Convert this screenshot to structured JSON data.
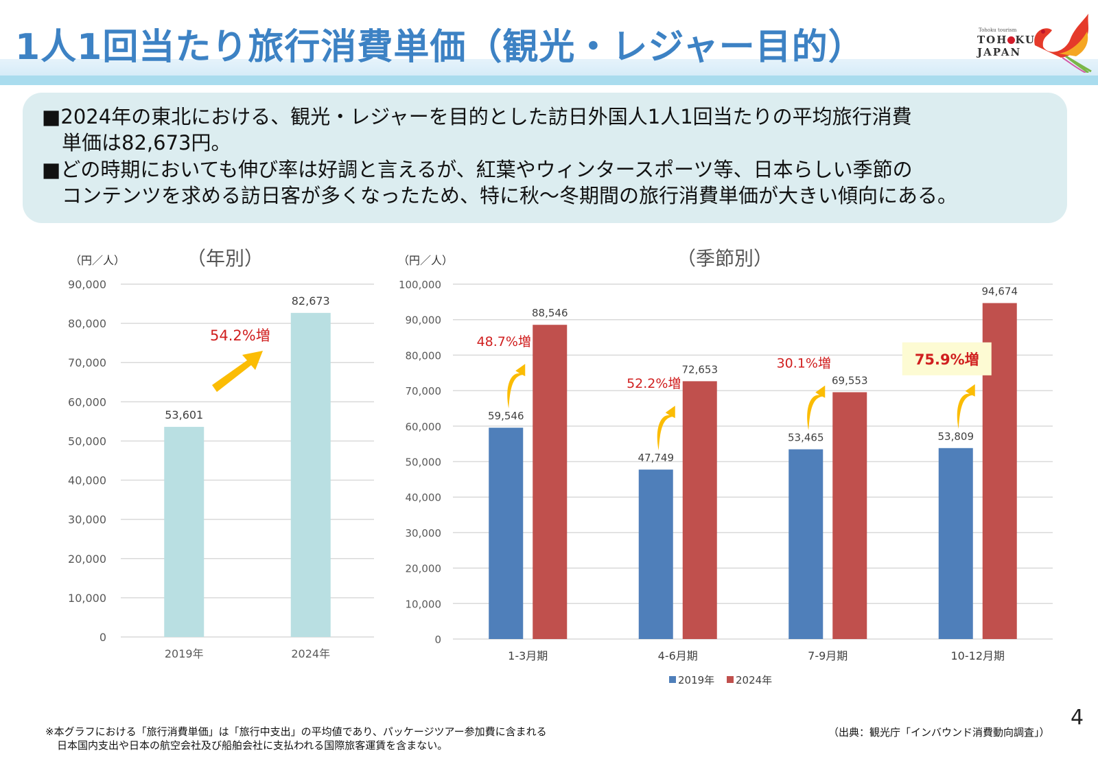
{
  "header": {
    "title": "1人1回当たり旅行消費単価（観光・レジャー目的）",
    "logo": {
      "tagline": "Tohoku tourism",
      "line1_a": "TOH",
      "line1_b": "KU",
      "line2": "JAPAN"
    }
  },
  "summary": {
    "bullet1_line1": "■2024年の東北における、観光・レジャーを目的とした訪日外国人1人1回当たりの平均旅行消費",
    "bullet1_line2": "単価は82,673円。",
    "bullet2_line1": "■どの時期においても伸び率は好調と言えるが、紅葉やウィンタースポーツ等、日本らしい季節の",
    "bullet2_line2": "コンテンツを求める訪日客が多くなったため、特に秋～冬期間の旅行消費単価が大きい傾向にある。"
  },
  "chart_data": [
    {
      "type": "bar",
      "title": "（年別）",
      "ylabel": "（円／人）",
      "xlabel": "",
      "categories": [
        "2019年",
        "2024年"
      ],
      "values": [
        53601,
        82673
      ],
      "value_labels": [
        "53,601",
        "82,673"
      ],
      "ylim": [
        0,
        90000
      ],
      "yticks": [
        0,
        10000,
        20000,
        30000,
        40000,
        50000,
        60000,
        70000,
        80000,
        90000
      ],
      "ytick_labels": [
        "0",
        "10,000",
        "20,000",
        "30,000",
        "40,000",
        "50,000",
        "60,000",
        "70,000",
        "80,000",
        "90,000"
      ],
      "grid": true,
      "color": "#b9dfe2",
      "annotation": "54.2%増"
    },
    {
      "type": "bar",
      "title": "（季節別）",
      "ylabel": "（円／人）",
      "xlabel": "",
      "categories": [
        "1-3月期",
        "4-6月期",
        "7-9月期",
        "10-12月期"
      ],
      "series": [
        {
          "name": "2019年",
          "color": "#4f7fba",
          "values": [
            59546,
            47749,
            53465,
            53809
          ],
          "labels": [
            "59,546",
            "47,749",
            "53,465",
            "53,809"
          ]
        },
        {
          "name": "2024年",
          "color": "#c0504d",
          "values": [
            88546,
            72653,
            69553,
            94674
          ],
          "labels": [
            "88,546",
            "72,653",
            "69,553",
            "94,674"
          ]
        }
      ],
      "ylim": [
        0,
        100000
      ],
      "yticks": [
        0,
        10000,
        20000,
        30000,
        40000,
        50000,
        60000,
        70000,
        80000,
        90000,
        100000
      ],
      "ytick_labels": [
        "0",
        "10,000",
        "20,000",
        "30,000",
        "40,000",
        "50,000",
        "60,000",
        "70,000",
        "80,000",
        "90,000",
        "100,000"
      ],
      "grid": true,
      "legend": "bottom",
      "annotations": [
        "48.7%増",
        "52.2%増",
        "30.1%増",
        "75.9%増"
      ],
      "highlighted_annotation_index": 3
    }
  ],
  "footer": {
    "note_line1": "※本グラフにおける「旅行消費単価」は「旅行中支出」の平均値であり、パッケージツアー参加費に含まれる",
    "note_line2": "日本国内支出や日本の航空会社及び船舶会社に支払われる国際旅客運賃を含まない。",
    "source": "（出典：観光庁「インバウンド消費動向調査」）",
    "page_number": "4"
  },
  "colors": {
    "title_blue": "#3d82c4",
    "annotation_red": "#d01f1f",
    "arrow_yellow": "#fbbc04",
    "highlight_bg": "#fdfbd3"
  }
}
